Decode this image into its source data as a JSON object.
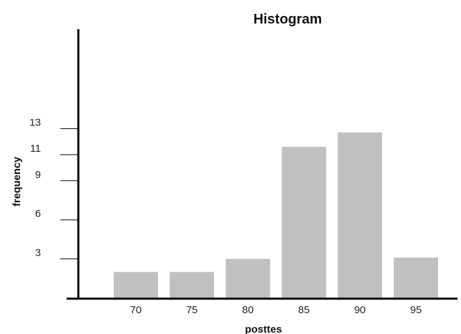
{
  "chart_data": {
    "type": "bar",
    "title": "Histogram",
    "xlabel": "posttes",
    "ylabel": "frequency",
    "categories": [
      "70",
      "75",
      "80",
      "85",
      "90",
      "95"
    ],
    "values": [
      2,
      2,
      3,
      11.6,
      12.7,
      3.1
    ],
    "y_ticks": [
      "3",
      "6",
      "9",
      "11",
      "13"
    ],
    "y_tick_values": [
      3,
      6,
      9,
      11,
      13
    ],
    "ylim": [
      0,
      19
    ],
    "grid": false,
    "legend": "none",
    "colors": {
      "bar": "#c0c0c0",
      "axis": "#000000",
      "text": "#111111"
    }
  }
}
